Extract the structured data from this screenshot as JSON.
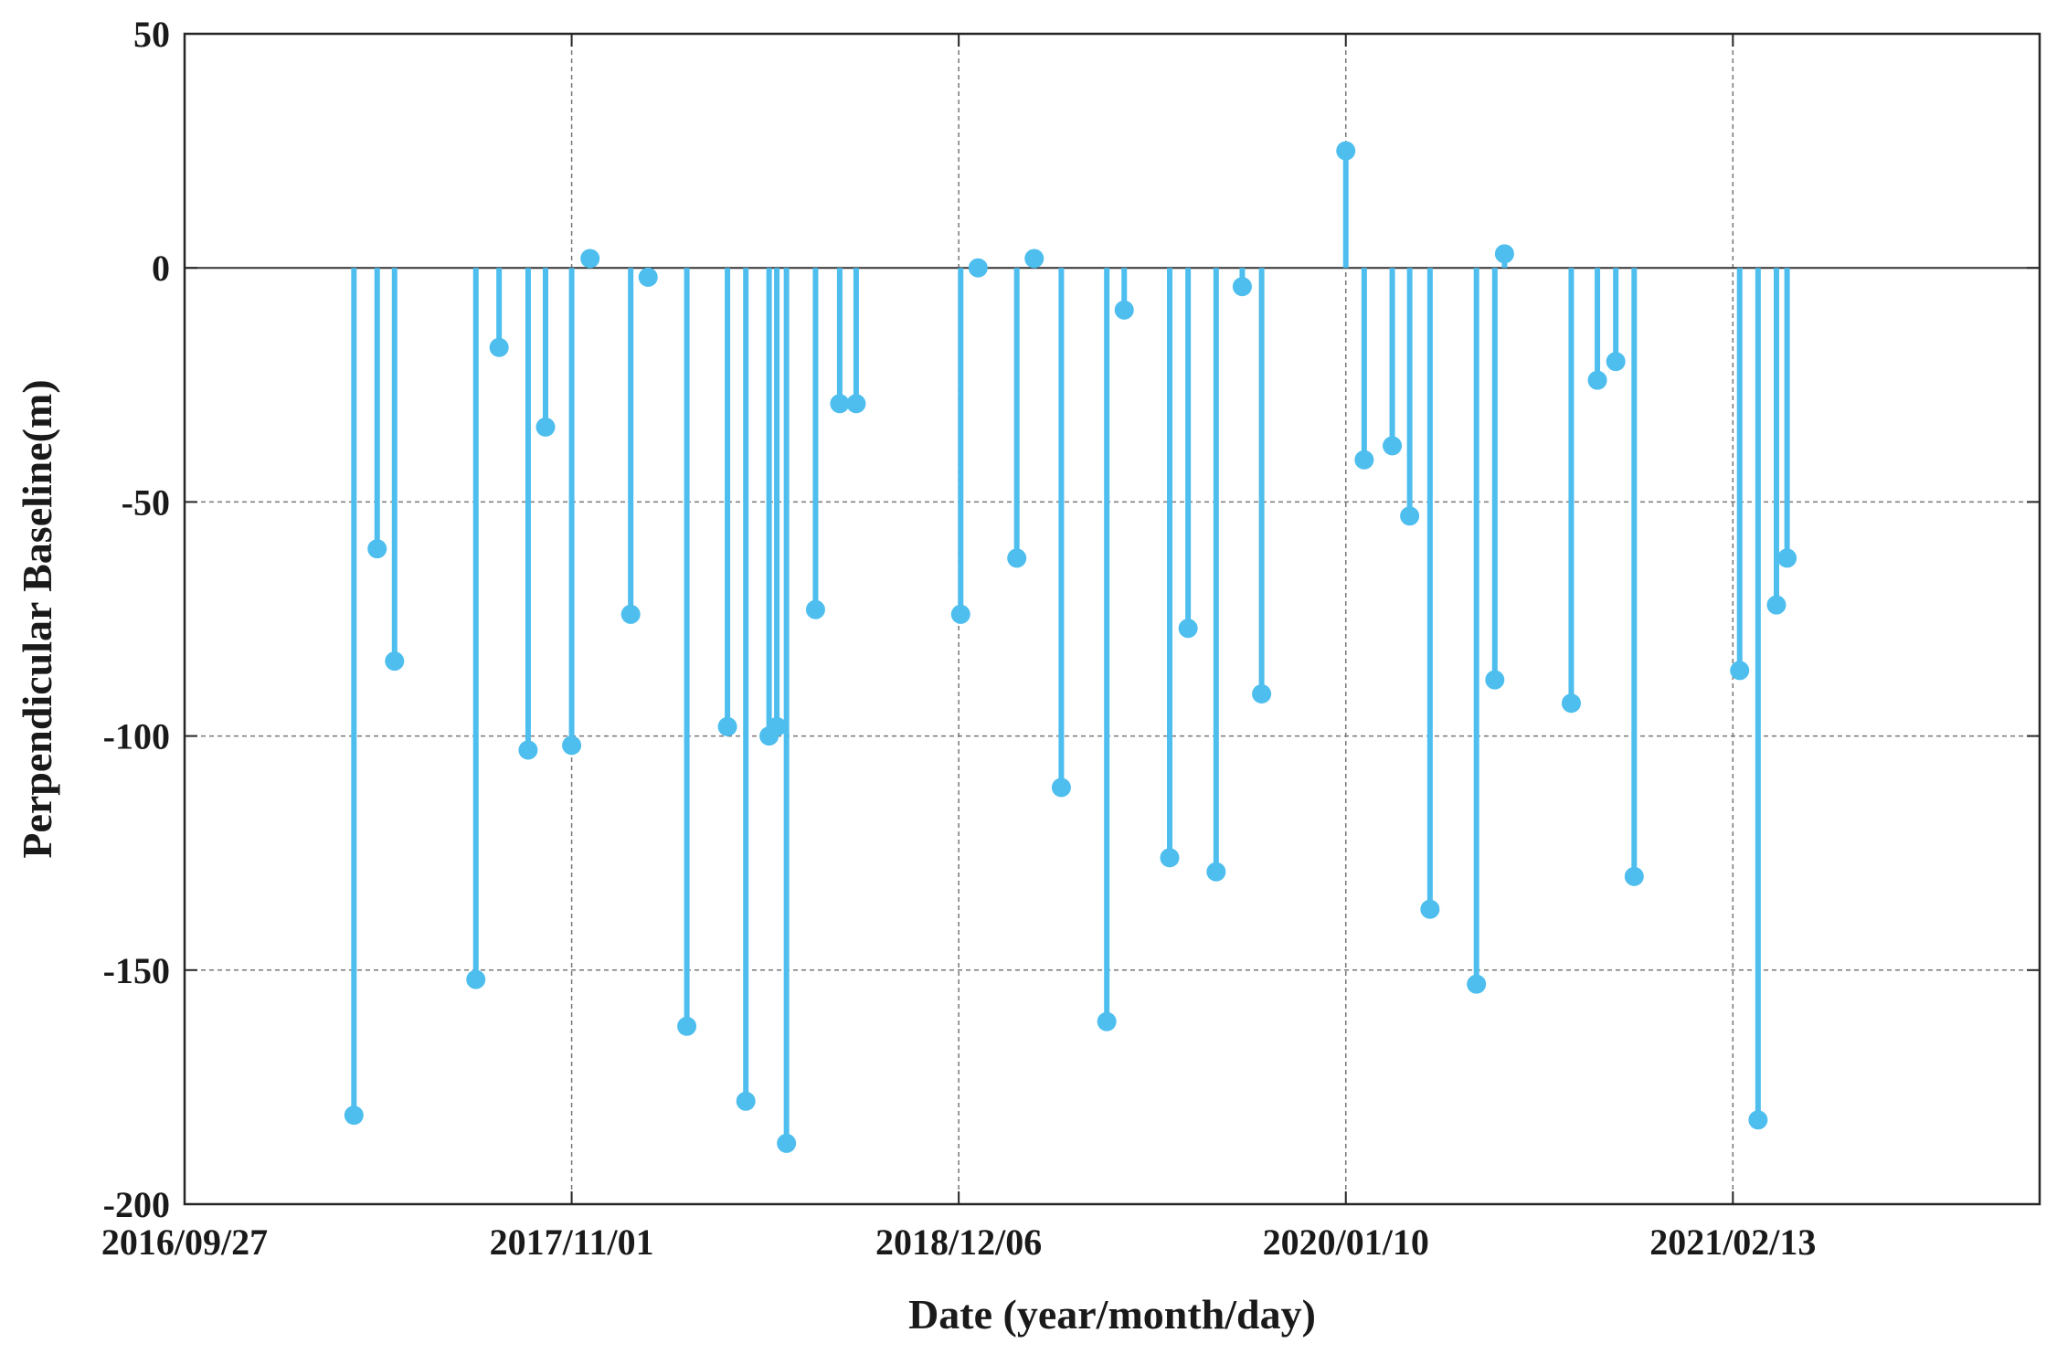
{
  "chart_data": {
    "type": "stem",
    "title": "",
    "xlabel": "Date (year/month/day)",
    "ylabel": "Perpendicular Baseline(m)",
    "ylim": [
      -200,
      50
    ],
    "yticks": [
      50,
      0,
      -50,
      -100,
      -150,
      -200
    ],
    "xlim": [
      "2016-09-27",
      "2021-12-27"
    ],
    "xticks": [
      "2016/09/27",
      "2017/11/01",
      "2018/12/06",
      "2020/01/10",
      "2021/02/13"
    ],
    "grid": true,
    "color": "#4dbeee",
    "points": [
      {
        "x": "2017-03-21",
        "y": -181
      },
      {
        "x": "2017-04-14",
        "y": -60
      },
      {
        "x": "2017-05-02",
        "y": -84
      },
      {
        "x": "2017-07-25",
        "y": -152
      },
      {
        "x": "2017-08-18",
        "y": -17
      },
      {
        "x": "2017-09-17",
        "y": -103
      },
      {
        "x": "2017-10-05",
        "y": -34
      },
      {
        "x": "2017-11-01",
        "y": -102
      },
      {
        "x": "2017-11-20",
        "y": 2
      },
      {
        "x": "2018-01-01",
        "y": -74
      },
      {
        "x": "2018-01-19",
        "y": -2
      },
      {
        "x": "2018-02-28",
        "y": -162
      },
      {
        "x": "2018-04-11",
        "y": -98
      },
      {
        "x": "2018-04-30",
        "y": -178
      },
      {
        "x": "2018-05-24",
        "y": -100
      },
      {
        "x": "2018-06-01",
        "y": -98
      },
      {
        "x": "2018-06-11",
        "y": -187
      },
      {
        "x": "2018-07-11",
        "y": -73
      },
      {
        "x": "2018-08-05",
        "y": -29
      },
      {
        "x": "2018-08-22",
        "y": -29
      },
      {
        "x": "2018-12-08",
        "y": -74
      },
      {
        "x": "2018-12-26",
        "y": 0
      },
      {
        "x": "2019-02-04",
        "y": -62
      },
      {
        "x": "2019-02-22",
        "y": 2
      },
      {
        "x": "2019-03-22",
        "y": -111
      },
      {
        "x": "2019-05-08",
        "y": -161
      },
      {
        "x": "2019-05-26",
        "y": -9
      },
      {
        "x": "2019-07-12",
        "y": -126
      },
      {
        "x": "2019-07-31",
        "y": -77
      },
      {
        "x": "2019-08-29",
        "y": -129
      },
      {
        "x": "2019-09-25",
        "y": -4
      },
      {
        "x": "2019-10-15",
        "y": -91
      },
      {
        "x": "2020-01-10",
        "y": 25
      },
      {
        "x": "2020-01-29",
        "y": -41
      },
      {
        "x": "2020-02-27",
        "y": -38
      },
      {
        "x": "2020-03-16",
        "y": -53
      },
      {
        "x": "2020-04-06",
        "y": -137
      },
      {
        "x": "2020-05-24",
        "y": -153
      },
      {
        "x": "2020-06-12",
        "y": -88
      },
      {
        "x": "2020-06-22",
        "y": 3
      },
      {
        "x": "2020-08-30",
        "y": -93
      },
      {
        "x": "2020-09-26",
        "y": -24
      },
      {
        "x": "2020-10-15",
        "y": -20
      },
      {
        "x": "2020-11-03",
        "y": -130
      },
      {
        "x": "2021-02-20",
        "y": -86
      },
      {
        "x": "2021-03-11",
        "y": -182
      },
      {
        "x": "2021-03-30",
        "y": -72
      },
      {
        "x": "2021-04-10",
        "y": -62
      }
    ]
  }
}
